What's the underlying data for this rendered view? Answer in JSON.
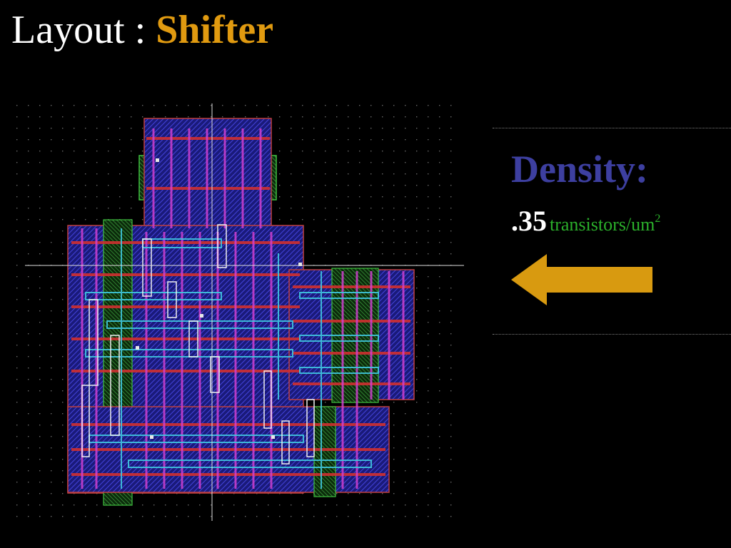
{
  "slide": {
    "title_prefix": "Layout : ",
    "title_accent": "Shifter"
  },
  "density": {
    "heading": "Density:",
    "value": ".35",
    "unit": "transistors/um",
    "unit_exponent": "2"
  },
  "colors": {
    "title": "#ffffff",
    "accent": "#e09a10",
    "heading": "#3d3fa0",
    "unit": "#2bb02b",
    "arrow": "#d89a10"
  },
  "figure": {
    "description_icon": "vlsi-layout-image"
  }
}
